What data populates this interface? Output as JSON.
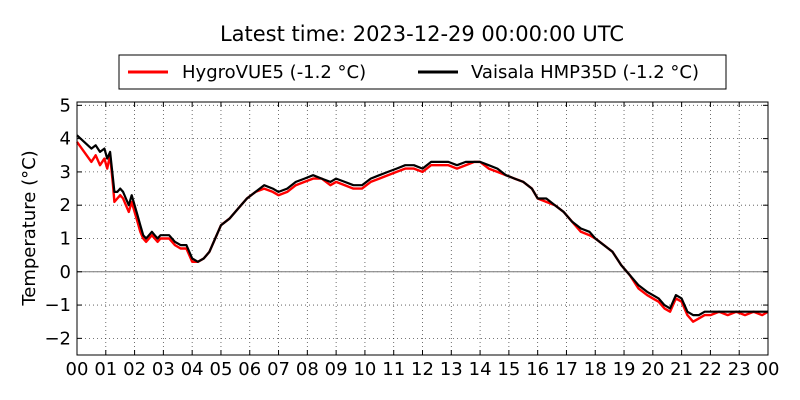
{
  "chart_data": {
    "type": "line",
    "title": "Latest time: 2023-12-29 00:00:00 UTC",
    "xlabel": "",
    "ylabel": "Temperature (°C)",
    "xlim": [
      0,
      24
    ],
    "ylim": [
      -2.5,
      5.1
    ],
    "x_ticks": [
      "00",
      "01",
      "02",
      "03",
      "04",
      "05",
      "06",
      "07",
      "08",
      "09",
      "10",
      "11",
      "12",
      "13",
      "14",
      "15",
      "16",
      "17",
      "18",
      "19",
      "20",
      "21",
      "22",
      "23",
      "00"
    ],
    "y_ticks": [
      -2,
      -1,
      0,
      1,
      2,
      3,
      4,
      5
    ],
    "y_tick_labels": [
      "−2",
      "−1",
      "0",
      "1",
      "2",
      "3",
      "4",
      "5"
    ],
    "grid": true,
    "zero_line": true,
    "legend_position": "top-center",
    "series": [
      {
        "name": "HygroVUE5 (-1.2 °C)",
        "color": "#ff0000",
        "x": [
          0.0,
          0.25,
          0.5,
          0.65,
          0.8,
          0.95,
          1.05,
          1.15,
          1.25,
          1.3,
          1.4,
          1.5,
          1.6,
          1.7,
          1.8,
          1.9,
          2.0,
          2.1,
          2.2,
          2.3,
          2.4,
          2.5,
          2.6,
          2.7,
          2.8,
          2.9,
          3.0,
          3.2,
          3.4,
          3.6,
          3.8,
          4.0,
          4.2,
          4.4,
          4.5,
          4.6,
          4.8,
          5.0,
          5.3,
          5.6,
          5.9,
          6.2,
          6.5,
          6.8,
          7.0,
          7.3,
          7.6,
          7.9,
          8.2,
          8.5,
          8.8,
          9.0,
          9.3,
          9.6,
          9.9,
          10.2,
          10.5,
          10.8,
          11.1,
          11.4,
          11.7,
          12.0,
          12.3,
          12.6,
          12.9,
          13.2,
          13.5,
          13.8,
          14.0,
          14.3,
          14.6,
          14.9,
          15.2,
          15.5,
          15.8,
          16.0,
          16.3,
          16.6,
          16.9,
          17.2,
          17.5,
          17.8,
          18.0,
          18.3,
          18.6,
          18.9,
          19.2,
          19.5,
          19.8,
          20.0,
          20.2,
          20.4,
          20.6,
          20.8,
          21.0,
          21.2,
          21.4,
          21.6,
          21.8,
          22.0,
          22.3,
          22.6,
          22.9,
          23.2,
          23.5,
          23.8,
          24.0
        ],
        "y": [
          3.9,
          3.6,
          3.3,
          3.5,
          3.2,
          3.4,
          3.1,
          3.5,
          2.6,
          2.1,
          2.2,
          2.3,
          2.2,
          2.0,
          1.8,
          2.1,
          1.8,
          1.5,
          1.2,
          1.0,
          0.9,
          1.0,
          1.1,
          1.0,
          0.9,
          1.0,
          1.0,
          1.0,
          0.8,
          0.7,
          0.7,
          0.3,
          0.3,
          0.4,
          0.5,
          0.6,
          1.0,
          1.4,
          1.6,
          1.9,
          2.2,
          2.4,
          2.5,
          2.4,
          2.3,
          2.4,
          2.6,
          2.7,
          2.8,
          2.8,
          2.6,
          2.7,
          2.6,
          2.5,
          2.5,
          2.7,
          2.8,
          2.9,
          3.0,
          3.1,
          3.1,
          3.0,
          3.2,
          3.2,
          3.2,
          3.1,
          3.2,
          3.3,
          3.3,
          3.1,
          3.0,
          2.9,
          2.8,
          2.7,
          2.5,
          2.2,
          2.1,
          2.0,
          1.8,
          1.5,
          1.2,
          1.1,
          1.0,
          0.8,
          0.6,
          0.2,
          -0.1,
          -0.5,
          -0.7,
          -0.8,
          -0.9,
          -1.1,
          -1.2,
          -0.8,
          -0.9,
          -1.3,
          -1.5,
          -1.4,
          -1.3,
          -1.3,
          -1.2,
          -1.3,
          -1.2,
          -1.3,
          -1.2,
          -1.3,
          -1.2
        ]
      },
      {
        "name": "Vaisala HMP35D (-1.2 °C)",
        "color": "#000000",
        "x": [
          0.0,
          0.25,
          0.5,
          0.65,
          0.8,
          0.95,
          1.05,
          1.15,
          1.25,
          1.3,
          1.4,
          1.5,
          1.6,
          1.7,
          1.8,
          1.9,
          2.0,
          2.1,
          2.2,
          2.3,
          2.4,
          2.5,
          2.6,
          2.7,
          2.8,
          2.9,
          3.0,
          3.2,
          3.4,
          3.6,
          3.8,
          4.0,
          4.2,
          4.4,
          4.5,
          4.6,
          4.8,
          5.0,
          5.3,
          5.6,
          5.9,
          6.2,
          6.5,
          6.8,
          7.0,
          7.3,
          7.6,
          7.9,
          8.2,
          8.5,
          8.8,
          9.0,
          9.3,
          9.6,
          9.9,
          10.2,
          10.5,
          10.8,
          11.1,
          11.4,
          11.7,
          12.0,
          12.3,
          12.6,
          12.9,
          13.2,
          13.5,
          13.8,
          14.0,
          14.3,
          14.6,
          14.9,
          15.2,
          15.5,
          15.8,
          16.0,
          16.3,
          16.6,
          16.9,
          17.2,
          17.5,
          17.8,
          18.0,
          18.3,
          18.6,
          18.9,
          19.2,
          19.5,
          19.8,
          20.0,
          20.2,
          20.4,
          20.6,
          20.8,
          21.0,
          21.2,
          21.4,
          21.6,
          21.8,
          22.0,
          22.3,
          22.6,
          22.9,
          23.2,
          23.5,
          23.8,
          24.0
        ],
        "y": [
          4.1,
          3.9,
          3.7,
          3.8,
          3.6,
          3.7,
          3.4,
          3.6,
          2.8,
          2.4,
          2.4,
          2.5,
          2.4,
          2.2,
          2.0,
          2.3,
          2.0,
          1.7,
          1.4,
          1.1,
          1.0,
          1.1,
          1.2,
          1.1,
          1.0,
          1.1,
          1.1,
          1.1,
          0.9,
          0.8,
          0.8,
          0.4,
          0.3,
          0.4,
          0.5,
          0.6,
          1.0,
          1.4,
          1.6,
          1.9,
          2.2,
          2.4,
          2.6,
          2.5,
          2.4,
          2.5,
          2.7,
          2.8,
          2.9,
          2.8,
          2.7,
          2.8,
          2.7,
          2.6,
          2.6,
          2.8,
          2.9,
          3.0,
          3.1,
          3.2,
          3.2,
          3.1,
          3.3,
          3.3,
          3.3,
          3.2,
          3.3,
          3.3,
          3.3,
          3.2,
          3.1,
          2.9,
          2.8,
          2.7,
          2.5,
          2.2,
          2.2,
          2.0,
          1.8,
          1.5,
          1.3,
          1.2,
          1.0,
          0.8,
          0.6,
          0.2,
          -0.1,
          -0.4,
          -0.6,
          -0.7,
          -0.8,
          -1.0,
          -1.1,
          -0.7,
          -0.8,
          -1.2,
          -1.3,
          -1.3,
          -1.2,
          -1.2,
          -1.2,
          -1.2,
          -1.2,
          -1.2,
          -1.2,
          -1.2,
          -1.2
        ]
      }
    ]
  }
}
